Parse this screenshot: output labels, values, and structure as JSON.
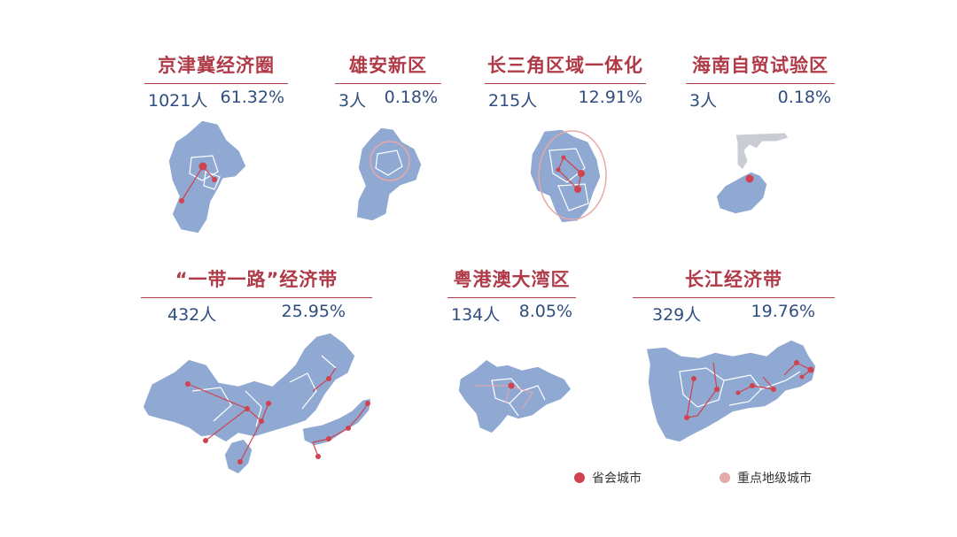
{
  "colors": {
    "title": "#b03a48",
    "stat": "#2f4e7e",
    "region_fill": "#8fa9d3",
    "region_stroke": "#ffffff",
    "capital_city": "#d0424f",
    "key_city": "#e7a8a8",
    "hainan_grey": "#c9ccd3"
  },
  "regions": [
    {
      "title": "京津冀经济圈",
      "count": "1021人",
      "percent": "61.32%"
    },
    {
      "title": "雄安新区",
      "count": "3人",
      "percent": "0.18%"
    },
    {
      "title": "长三角区域一体化",
      "count": "215人",
      "percent": "12.91%"
    },
    {
      "title": "海南自贸试验区",
      "count": "3人",
      "percent": "0.18%"
    },
    {
      "title": "“一带一路”经济带",
      "count": "432人",
      "percent": "25.95%"
    },
    {
      "title": "粤港澳大湾区",
      "count": "134人",
      "percent": "8.05%"
    },
    {
      "title": "长江经济带",
      "count": "329人",
      "percent": "19.76%"
    }
  ],
  "legend": {
    "capital": "省会城市",
    "key": "重点地级城市"
  }
}
